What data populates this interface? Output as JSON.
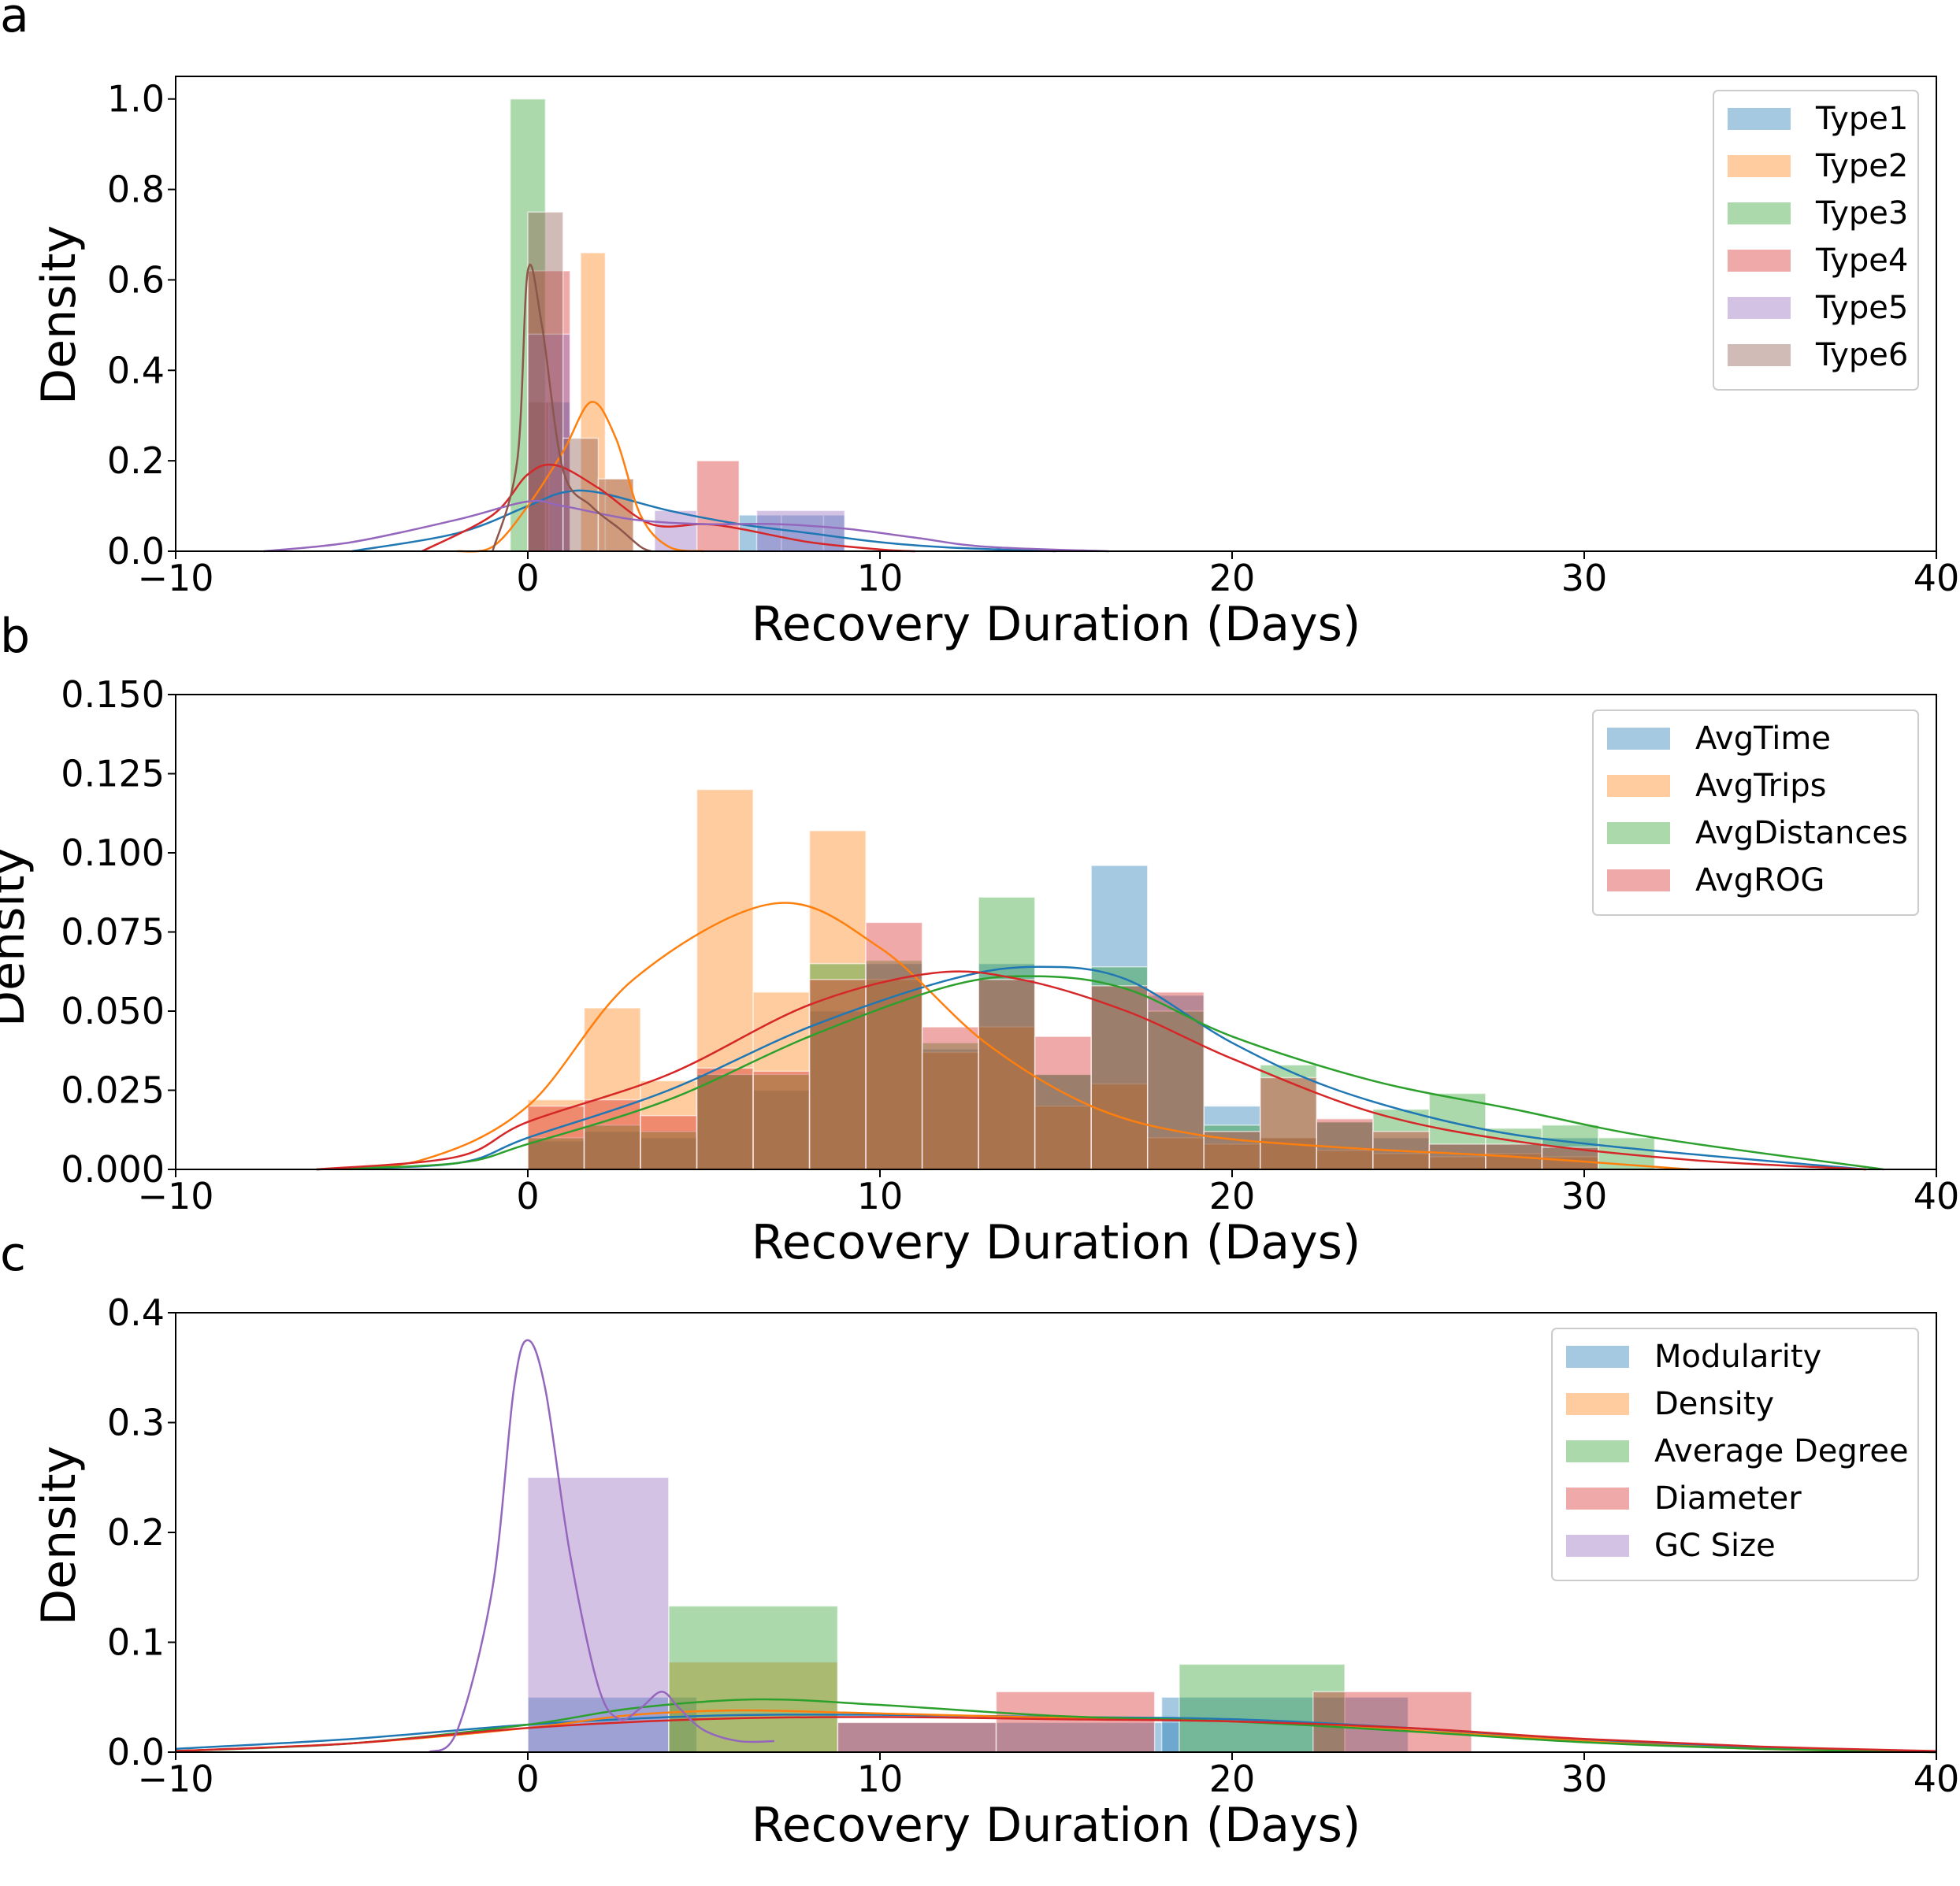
{
  "chart_data": [
    {
      "panel_label": "a",
      "type": "histogram",
      "xlabel": "Recovery Duration (Days)",
      "ylabel": "Density",
      "xlim": [
        -10,
        40
      ],
      "ylim": [
        0,
        1.05
      ],
      "xticks": [
        -10,
        0,
        10,
        20,
        30,
        40
      ],
      "yticks": [
        0.0,
        0.2,
        0.4,
        0.6,
        0.8,
        1.0
      ],
      "ytick_labels": [
        "0.0",
        "0.2",
        "0.4",
        "0.6",
        "0.8",
        "1.0"
      ],
      "legend_position": "top-right",
      "grid": false,
      "series": [
        {
          "name": "Type1",
          "color": "#1f77b4",
          "bars": [
            [
              0,
              1.2,
              0.33
            ],
            [
              1.2,
              2.4,
              0.0
            ],
            [
              6,
              7.2,
              0.08
            ],
            [
              7.2,
              8.4,
              0.08
            ],
            [
              8.4,
              9,
              0.08
            ]
          ],
          "kde": [
            [
              -5,
              0
            ],
            [
              -2,
              0.04
            ],
            [
              0,
              0.1
            ],
            [
              1,
              0.13
            ],
            [
              2,
              0.13
            ],
            [
              4,
              0.09
            ],
            [
              6,
              0.06
            ],
            [
              8,
              0.04
            ],
            [
              10,
              0.02
            ],
            [
              12,
              0.008
            ],
            [
              15,
              0
            ]
          ]
        },
        {
          "name": "Type2",
          "color": "#ff7f0e",
          "bars": [
            [
              0,
              0.6,
              0.33
            ],
            [
              0.6,
              1.5,
              0.0
            ],
            [
              1.5,
              2.2,
              0.66
            ],
            [
              2.2,
              3.0,
              0.16
            ]
          ],
          "kde": [
            [
              -2,
              0
            ],
            [
              -1,
              0.01
            ],
            [
              0,
              0.1
            ],
            [
              1,
              0.22
            ],
            [
              1.8,
              0.33
            ],
            [
              2.5,
              0.25
            ],
            [
              3.2,
              0.08
            ],
            [
              4,
              0.01
            ],
            [
              5,
              0
            ]
          ]
        },
        {
          "name": "Type3",
          "color": "#2ca02c",
          "bars": [
            [
              -0.5,
              0.5,
              1.0
            ]
          ],
          "kde": []
        },
        {
          "name": "Type4",
          "color": "#d62728",
          "bars": [
            [
              0,
              1.2,
              0.62
            ],
            [
              4.8,
              6.0,
              0.2
            ]
          ],
          "kde": [
            [
              -3,
              0
            ],
            [
              -1,
              0.08
            ],
            [
              0,
              0.17
            ],
            [
              0.8,
              0.19
            ],
            [
              2,
              0.14
            ],
            [
              3.5,
              0.06
            ],
            [
              5,
              0.06
            ],
            [
              6,
              0.05
            ],
            [
              8,
              0.02
            ],
            [
              10,
              0.004
            ],
            [
              11,
              0
            ]
          ]
        },
        {
          "name": "Type5",
          "color": "#9467bd",
          "bars": [
            [
              0,
              1.2,
              0.48
            ],
            [
              3.6,
              4.8,
              0.09
            ],
            [
              6.5,
              9.0,
              0.09
            ]
          ],
          "kde": [
            [
              -7.5,
              0
            ],
            [
              -5,
              0.02
            ],
            [
              -2,
              0.07
            ],
            [
              0,
              0.11
            ],
            [
              1,
              0.1
            ],
            [
              3,
              0.07
            ],
            [
              5,
              0.06
            ],
            [
              7,
              0.06
            ],
            [
              9,
              0.05
            ],
            [
              11,
              0.03
            ],
            [
              13,
              0.01
            ],
            [
              16.5,
              0
            ]
          ]
        },
        {
          "name": "Type6",
          "color": "#8c564b",
          "bars": [
            [
              0,
              1.0,
              0.75
            ],
            [
              1.0,
              2.0,
              0.25
            ],
            [
              2.0,
              3.0,
              0.16
            ]
          ],
          "kde": [
            [
              -1,
              0
            ],
            [
              -0.3,
              0.2
            ],
            [
              0,
              0.62
            ],
            [
              0.4,
              0.5
            ],
            [
              1,
              0.18
            ],
            [
              1.8,
              0.1
            ],
            [
              2.6,
              0.05
            ],
            [
              3.2,
              0.01
            ],
            [
              3.5,
              0
            ]
          ]
        }
      ]
    },
    {
      "panel_label": "b",
      "type": "histogram",
      "xlabel": "Recovery Duration (Days)",
      "ylabel": "Density",
      "xlim": [
        -10,
        40
      ],
      "ylim": [
        0,
        0.15
      ],
      "xticks": [
        -10,
        0,
        10,
        20,
        30,
        40
      ],
      "yticks": [
        0.0,
        0.025,
        0.05,
        0.075,
        0.1,
        0.125,
        0.15
      ],
      "ytick_labels": [
        "0.000",
        "0.025",
        "0.050",
        "0.075",
        "0.100",
        "0.125",
        "0.150"
      ],
      "legend_position": "top-right",
      "grid": false,
      "bin_edges": [
        0,
        1.6,
        3.2,
        4.8,
        6.4,
        8.0,
        9.6,
        11.2,
        12.8,
        14.4,
        16.0,
        17.6,
        19.2,
        20.8,
        22.4,
        24.0,
        25.6,
        27.2,
        28.8,
        30.4,
        32.0
      ],
      "series": [
        {
          "name": "AvgTime",
          "color": "#1f77b4",
          "values": [
            0.009,
            0.012,
            0.01,
            0.03,
            0.025,
            0.05,
            0.065,
            0.038,
            0.065,
            0.03,
            0.096,
            0.055,
            0.02,
            0.01,
            0.015,
            0.01,
            0.008,
            0.008,
            0.01,
            0
          ],
          "kde": [
            [
              -6,
              0
            ],
            [
              -2,
              0.002
            ],
            [
              0,
              0.01
            ],
            [
              4,
              0.025
            ],
            [
              8,
              0.045
            ],
            [
              12,
              0.06
            ],
            [
              14.5,
              0.064
            ],
            [
              17,
              0.06
            ],
            [
              20,
              0.04
            ],
            [
              23,
              0.025
            ],
            [
              27,
              0.013
            ],
            [
              31,
              0.007
            ],
            [
              38,
              0
            ]
          ]
        },
        {
          "name": "AvgTrips",
          "color": "#ff7f0e",
          "values": [
            0.022,
            0.051,
            0.028,
            0.12,
            0.056,
            0.107,
            0.06,
            0.037,
            0.045,
            0.02,
            0.027,
            0.01,
            0.008,
            0.01,
            0.006,
            0.005,
            0.004,
            0.005,
            0.004,
            0
          ],
          "kde": [
            [
              -6,
              0
            ],
            [
              -3,
              0.003
            ],
            [
              0,
              0.02
            ],
            [
              3,
              0.06
            ],
            [
              7,
              0.084
            ],
            [
              10,
              0.07
            ],
            [
              13,
              0.04
            ],
            [
              16,
              0.02
            ],
            [
              19,
              0.011
            ],
            [
              23,
              0.007
            ],
            [
              28,
              0.004
            ],
            [
              33,
              0
            ]
          ]
        },
        {
          "name": "AvgDistances",
          "color": "#2ca02c",
          "values": [
            0.01,
            0.014,
            0.012,
            0.03,
            0.03,
            0.065,
            0.066,
            0.04,
            0.086,
            0.03,
            0.064,
            0.05,
            0.014,
            0.033,
            0.015,
            0.019,
            0.024,
            0.013,
            0.014,
            0.01
          ],
          "kde": [
            [
              -6,
              0
            ],
            [
              -2,
              0.002
            ],
            [
              0,
              0.008
            ],
            [
              4,
              0.022
            ],
            [
              8,
              0.042
            ],
            [
              12,
              0.058
            ],
            [
              14.5,
              0.061
            ],
            [
              17,
              0.057
            ],
            [
              20,
              0.042
            ],
            [
              24,
              0.028
            ],
            [
              28,
              0.019
            ],
            [
              32,
              0.01
            ],
            [
              38.5,
              0
            ]
          ]
        },
        {
          "name": "AvgROG",
          "color": "#d62728",
          "values": [
            0.02,
            0.022,
            0.017,
            0.032,
            0.031,
            0.06,
            0.078,
            0.045,
            0.06,
            0.042,
            0.058,
            0.056,
            0.012,
            0.029,
            0.016,
            0.012,
            0.008,
            0.008,
            0.007,
            0
          ],
          "kde": [
            [
              -6,
              0
            ],
            [
              -2,
              0.004
            ],
            [
              0,
              0.015
            ],
            [
              4,
              0.03
            ],
            [
              8,
              0.052
            ],
            [
              11.5,
              0.062
            ],
            [
              14,
              0.06
            ],
            [
              17,
              0.05
            ],
            [
              20,
              0.035
            ],
            [
              24,
              0.018
            ],
            [
              28,
              0.009
            ],
            [
              33,
              0.003
            ],
            [
              38,
              0
            ]
          ]
        }
      ]
    },
    {
      "panel_label": "c",
      "type": "histogram",
      "xlabel": "Recovery Duration (Days)",
      "ylabel": "Density",
      "xlim": [
        -10,
        40
      ],
      "ylim": [
        0,
        0.4
      ],
      "xticks": [
        -10,
        0,
        10,
        20,
        30,
        40
      ],
      "yticks": [
        0.0,
        0.1,
        0.2,
        0.3,
        0.4
      ],
      "ytick_labels": [
        "0.0",
        "0.1",
        "0.2",
        "0.3",
        "0.4"
      ],
      "legend_position": "top-right",
      "grid": false,
      "series": [
        {
          "name": "Modularity",
          "color": "#1f77b4",
          "bars": [
            [
              0,
              4.8,
              0.05
            ],
            [
              8.8,
              18.5,
              0.027
            ],
            [
              18,
              25,
              0.05
            ]
          ],
          "kde": [
            [
              -10,
              0.003
            ],
            [
              -5,
              0.012
            ],
            [
              0,
              0.025
            ],
            [
              5,
              0.033
            ],
            [
              10,
              0.034
            ],
            [
              15,
              0.032
            ],
            [
              20,
              0.03
            ],
            [
              25,
              0.022
            ],
            [
              30,
              0.011
            ],
            [
              35,
              0.004
            ],
            [
              40,
              0.0
            ]
          ]
        },
        {
          "name": "Density",
          "color": "#ff7f0e",
          "bars": [
            [
              4,
              8.8,
              0.082
            ],
            [
              0,
              4,
              0.0
            ]
          ],
          "kde": [
            [
              -10,
              0.001
            ],
            [
              -5,
              0.008
            ],
            [
              0,
              0.022
            ],
            [
              3,
              0.034
            ],
            [
              6,
              0.038
            ],
            [
              9,
              0.036
            ],
            [
              14,
              0.032
            ],
            [
              20,
              0.028
            ],
            [
              25,
              0.02
            ],
            [
              30,
              0.01
            ],
            [
              35,
              0.003
            ],
            [
              40,
              0.0
            ]
          ]
        },
        {
          "name": "Average Degree",
          "color": "#2ca02c",
          "bars": [
            [
              4,
              8.8,
              0.133
            ],
            [
              18.5,
              23.2,
              0.08
            ]
          ],
          "kde": [
            [
              -10,
              0.001
            ],
            [
              -5,
              0.008
            ],
            [
              0,
              0.025
            ],
            [
              3,
              0.04
            ],
            [
              6.5,
              0.048
            ],
            [
              10,
              0.043
            ],
            [
              15,
              0.033
            ],
            [
              20,
              0.028
            ],
            [
              25,
              0.019
            ],
            [
              30,
              0.009
            ],
            [
              35,
              0.003
            ],
            [
              40,
              0.0
            ]
          ]
        },
        {
          "name": "Diameter",
          "color": "#d62728",
          "bars": [
            [
              8.8,
              13.3,
              0.027
            ],
            [
              13.3,
              17.8,
              0.055
            ],
            [
              22.3,
              26.8,
              0.055
            ]
          ],
          "kde": [
            [
              -10,
              0.001
            ],
            [
              -5,
              0.008
            ],
            [
              0,
              0.022
            ],
            [
              5,
              0.03
            ],
            [
              10,
              0.032
            ],
            [
              15,
              0.03
            ],
            [
              20,
              0.028
            ],
            [
              25,
              0.022
            ],
            [
              30,
              0.012
            ],
            [
              35,
              0.005
            ],
            [
              40,
              0.001
            ]
          ]
        },
        {
          "name": "GC Size",
          "color": "#9467bd",
          "bars": [
            [
              0,
              4,
              0.25
            ],
            [
              15,
              25,
              0.0
            ]
          ],
          "kde": [
            [
              -2.8,
              0.0
            ],
            [
              -2,
              0.02
            ],
            [
              -1,
              0.15
            ],
            [
              -0.4,
              0.33
            ],
            [
              0,
              0.375
            ],
            [
              0.5,
              0.33
            ],
            [
              1.2,
              0.18
            ],
            [
              2,
              0.06
            ],
            [
              2.6,
              0.03
            ],
            [
              3.2,
              0.04
            ],
            [
              3.8,
              0.055
            ],
            [
              4.3,
              0.04
            ],
            [
              5,
              0.02
            ],
            [
              6,
              0.01
            ],
            [
              7,
              0.01
            ]
          ]
        }
      ]
    }
  ]
}
